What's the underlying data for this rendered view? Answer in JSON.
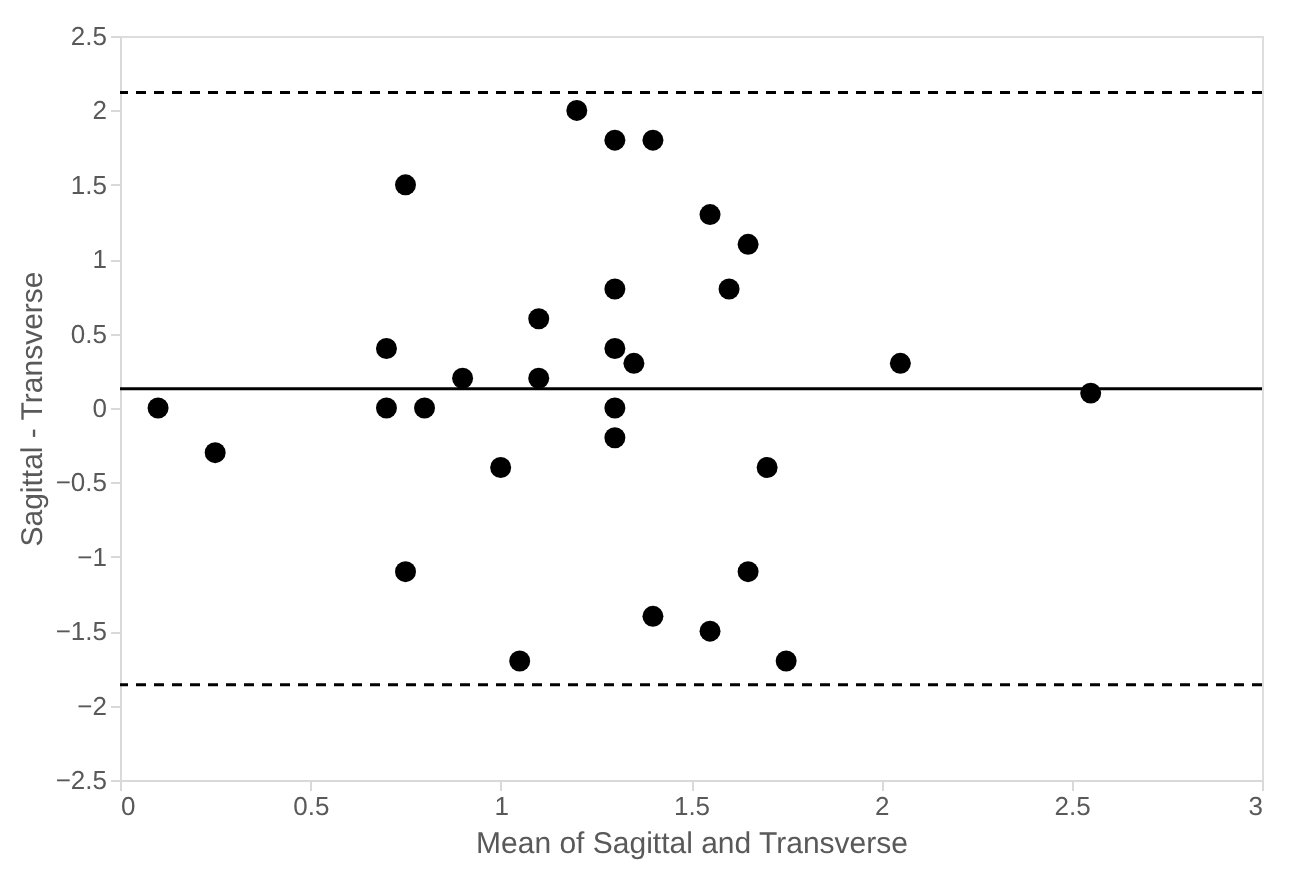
{
  "chart_data": {
    "type": "scatter",
    "xlabel": "Mean of Sagittal and Transverse",
    "ylabel": "Sagittal - Transverse",
    "x": [
      0.1,
      0.25,
      0.7,
      0.7,
      0.75,
      0.75,
      0.8,
      0.9,
      1.0,
      1.05,
      1.1,
      1.1,
      1.2,
      1.3,
      1.3,
      1.3,
      1.3,
      1.3,
      1.35,
      1.4,
      1.4,
      1.55,
      1.55,
      1.6,
      1.65,
      1.65,
      1.7,
      1.75,
      2.05,
      2.55
    ],
    "series": [
      {
        "color": "#000000",
        "values": [
          0,
          -0.3,
          0.4,
          0,
          1.5,
          -1.1,
          0,
          0.2,
          -0.4,
          -1.7,
          0.6,
          0.2,
          2.0,
          1.8,
          0.8,
          0.4,
          0,
          -0.2,
          0.3,
          1.8,
          -1.4,
          1.3,
          -1.5,
          0.8,
          1.1,
          -1.1,
          -0.4,
          -1.7,
          0.3,
          0.1
        ]
      }
    ],
    "xlim": [
      0,
      3
    ],
    "xticks": [
      0,
      0.5,
      1,
      1.5,
      2,
      2.5,
      3
    ],
    "ylim": [
      -2.5,
      2.5
    ],
    "yticks": [
      -2.5,
      -2,
      -1.5,
      -1,
      -0.5,
      0,
      0.5,
      1,
      1.5,
      2,
      2.5
    ],
    "ref_lines": [
      {
        "axis": "y",
        "value": 2.12,
        "line_style": "dashed",
        "color": "#000000"
      },
      {
        "axis": "y",
        "value": 0.13,
        "line_style": "solid",
        "color": "#000000"
      },
      {
        "axis": "y",
        "value": -1.86,
        "line_style": "dashed",
        "color": "#000000"
      }
    ],
    "marker": "circle",
    "grid": false
  }
}
